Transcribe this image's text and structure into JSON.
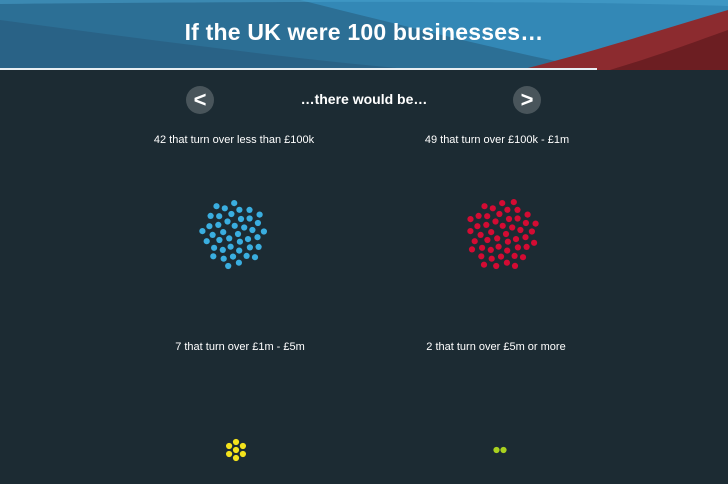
{
  "header": {
    "title": "If the UK were 100 businesses…"
  },
  "nav": {
    "prev_label": "<",
    "next_label": ">",
    "subtitle": "…there would be…"
  },
  "groups": [
    {
      "label": "42 that turn over less than £100k",
      "count": 42,
      "color": "#3aaee0"
    },
    {
      "label": "49 that turn over £100k - £1m",
      "count": 49,
      "color": "#d40b33"
    },
    {
      "label": "7 that turn over £1m - £5m",
      "count": 7,
      "color": "#f3e21c"
    },
    {
      "label": "2 that turn over £5m or more",
      "count": 2,
      "color": "#a9d11f"
    }
  ]
}
